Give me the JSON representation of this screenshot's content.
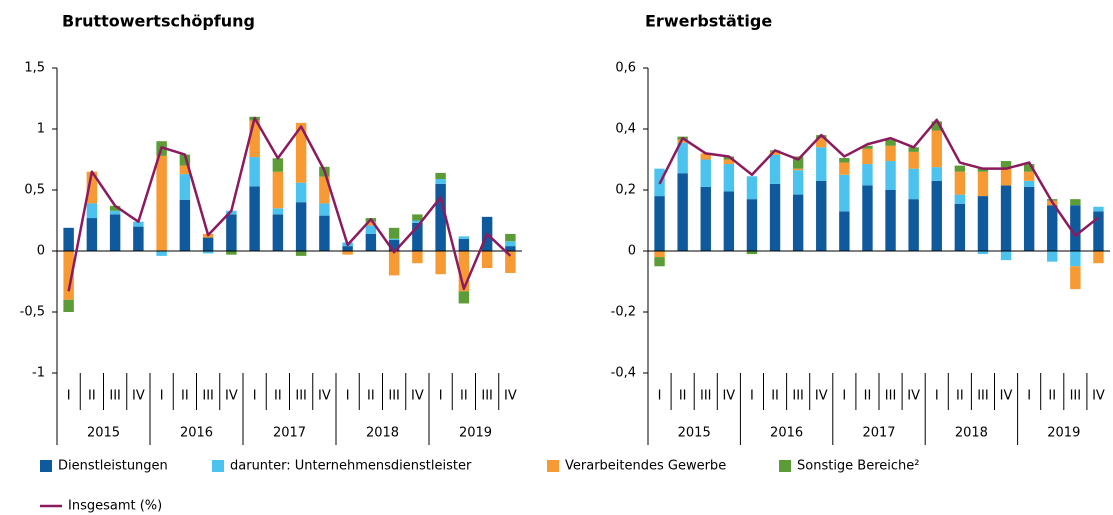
{
  "chart_data": [
    {
      "type": "bar",
      "stacked": true,
      "title": "Bruttowertschöpfung",
      "categories": [
        "I",
        "II",
        "III",
        "IV",
        "I",
        "II",
        "III",
        "IV",
        "I",
        "II",
        "III",
        "IV",
        "I",
        "II",
        "III",
        "IV",
        "I",
        "II",
        "III",
        "IV"
      ],
      "years": [
        "2015",
        "2016",
        "2017",
        "2018",
        "2019"
      ],
      "ylim": [
        -1,
        1.5
      ],
      "yticks": [
        -1,
        {
          "value": -0.5,
          "label": "-0,5"
        },
        0,
        {
          "value": 0.5,
          "label": "0,5"
        },
        1,
        {
          "value": 1.5,
          "label": "1,5"
        }
      ],
      "series": [
        {
          "name": "Dienstleistungen",
          "color": "#0f5a9c",
          "values": [
            0.19,
            0.27,
            0.3,
            0.2,
            0,
            0.42,
            0.11,
            0.3,
            0.53,
            0.3,
            0.4,
            0.29,
            0.04,
            0.14,
            0.09,
            0.23,
            0.55,
            0.1,
            0.28,
            0.04
          ]
        },
        {
          "name": "darunter: Unternehmensdienstleister",
          "color": "#4cc2ee",
          "values": [
            0,
            0.12,
            0.03,
            0.04,
            -0.04,
            0.21,
            -0.02,
            0.03,
            0.24,
            0.05,
            0.16,
            0.1,
            0.03,
            0.07,
            0.01,
            0.02,
            0.04,
            0.02,
            0,
            0.04
          ]
        },
        {
          "name": "Verarbeitendes Gewerbe",
          "color": "#f79a34",
          "values": [
            -0.4,
            0.26,
            0,
            0,
            0.78,
            0.07,
            0.03,
            0,
            0.3,
            0.3,
            0.49,
            0.22,
            -0.03,
            0.03,
            -0.2,
            -0.1,
            -0.19,
            -0.33,
            -0.14,
            -0.18
          ]
        },
        {
          "name": "Sonstige Bereiche²",
          "color": "#5c9c37",
          "values": [
            -0.1,
            0,
            0.04,
            0,
            0.12,
            0.09,
            0,
            -0.03,
            0.03,
            0.11,
            -0.04,
            0.08,
            0,
            0.03,
            0.09,
            0.05,
            0.05,
            -0.1,
            0,
            0.06
          ]
        },
        {
          "name": "Insgesamt (%)",
          "type": "line",
          "color": "#8c1a5e",
          "values": [
            -0.33,
            0.65,
            0.37,
            0.24,
            0.85,
            0.79,
            0.13,
            0.33,
            1.09,
            0.76,
            1.02,
            0.66,
            0.05,
            0.26,
            -0.01,
            0.2,
            0.44,
            -0.31,
            0.14,
            -0.04
          ]
        }
      ]
    },
    {
      "type": "bar",
      "stacked": true,
      "title": "Erwerbstätige",
      "categories": [
        "I",
        "II",
        "III",
        "IV",
        "I",
        "II",
        "III",
        "IV",
        "I",
        "II",
        "III",
        "IV",
        "I",
        "II",
        "III",
        "IV",
        "I",
        "II",
        "III",
        "IV"
      ],
      "years": [
        "2015",
        "2016",
        "2017",
        "2018",
        "2019"
      ],
      "ylim": [
        -0.4,
        0.6
      ],
      "yticks": [
        {
          "value": -0.4,
          "label": "-0,4"
        },
        {
          "value": -0.2,
          "label": "-0,2"
        },
        0,
        {
          "value": 0.2,
          "label": "0,2"
        },
        {
          "value": 0.4,
          "label": "0,4"
        },
        {
          "value": 0.6,
          "label": "0,6"
        }
      ],
      "series": [
        {
          "color": "#0f5a9c",
          "values": [
            0.18,
            0.255,
            0.21,
            0.195,
            0.17,
            0.22,
            0.185,
            0.23,
            0.13,
            0.215,
            0.2,
            0.17,
            0.23,
            0.155,
            0.18,
            0.215,
            0.21,
            0.15,
            0.15,
            0.13
          ]
        },
        {
          "color": "#4cc2ee",
          "values": [
            0.09,
            0.1,
            0.09,
            0.09,
            0.075,
            0.095,
            0.08,
            0.11,
            0.12,
            0.07,
            0.095,
            0.1,
            0.045,
            0.03,
            -0.01,
            -0.03,
            0.02,
            -0.035,
            -0.05,
            0.015
          ]
        },
        {
          "color": "#f79a34",
          "values": [
            -0.02,
            0.01,
            0.02,
            0.015,
            0,
            0.01,
            0.005,
            0.03,
            0.04,
            0.05,
            0.05,
            0.055,
            0.12,
            0.075,
            0.08,
            0.055,
            0.03,
            0.015,
            -0.075,
            -0.04
          ]
        },
        {
          "color": "#5c9c37",
          "values": [
            -0.03,
            0.01,
            0,
            0.01,
            -0.01,
            0.005,
            0.04,
            0.01,
            0.015,
            0.01,
            0.02,
            0.015,
            0.03,
            0.02,
            0.01,
            0.025,
            0.025,
            0.005,
            0.02,
            0
          ]
        },
        {
          "type": "line",
          "color": "#8c1a5e",
          "values": [
            0.22,
            0.37,
            0.32,
            0.31,
            0.25,
            0.33,
            0.3,
            0.38,
            0.31,
            0.35,
            0.37,
            0.34,
            0.43,
            0.29,
            0.27,
            0.27,
            0.29,
            0.16,
            0.05,
            0.11
          ]
        }
      ]
    }
  ]
}
